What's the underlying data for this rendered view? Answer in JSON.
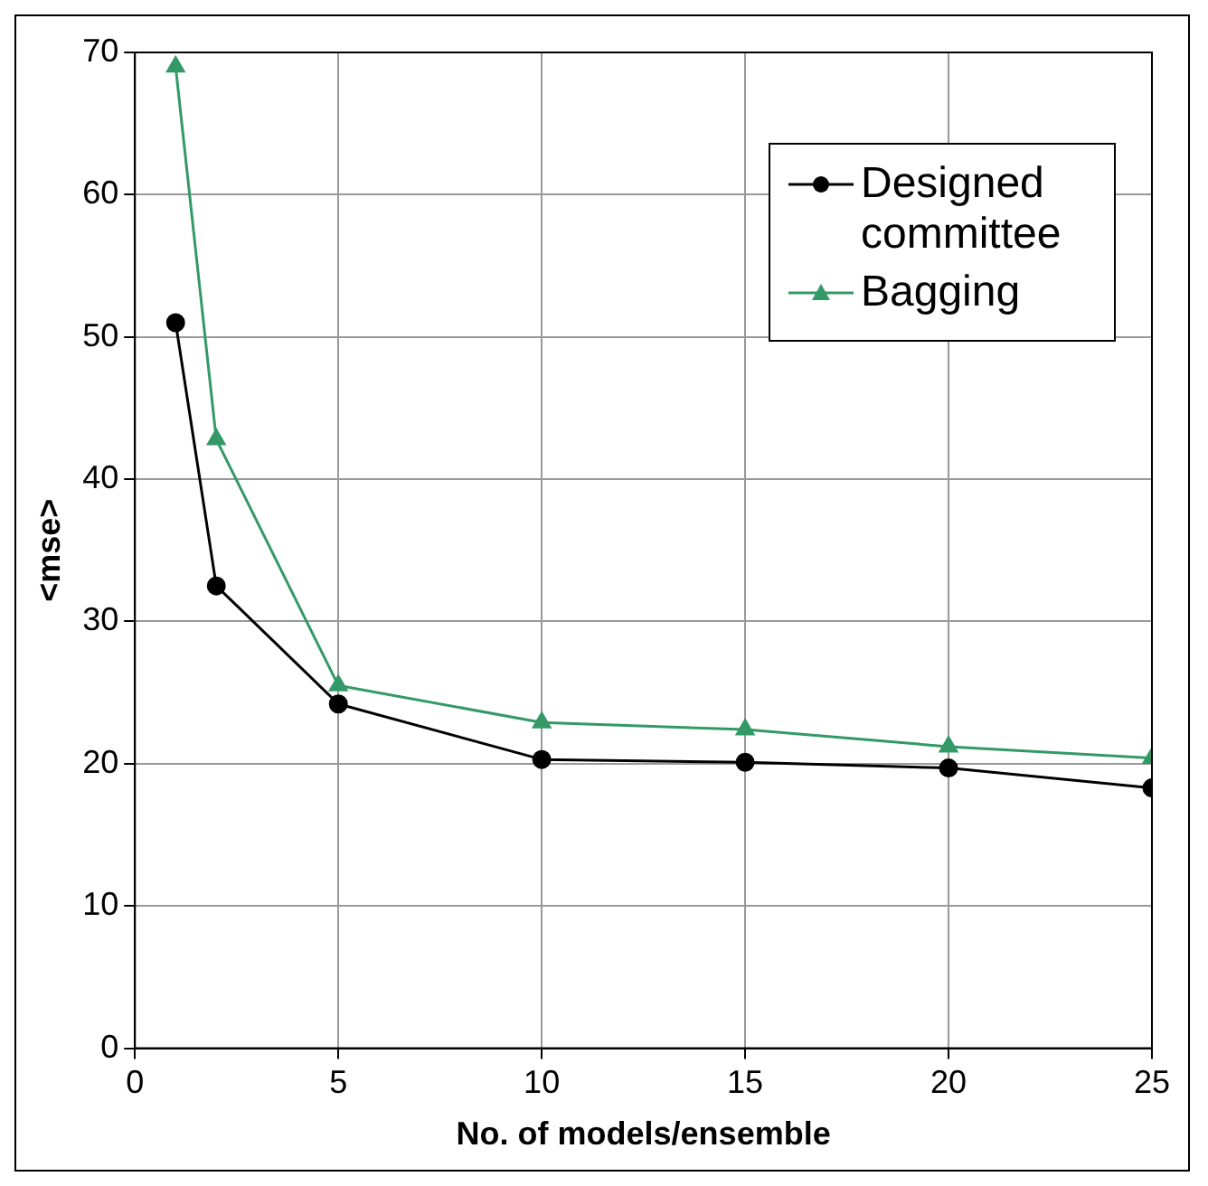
{
  "chart_data": {
    "type": "line",
    "xlabel": "No. of models/ensemble",
    "ylabel": "<mse>",
    "x": [
      1,
      2,
      5,
      10,
      15,
      20,
      25
    ],
    "series": [
      {
        "name": "Designed committee",
        "color": "#000000",
        "marker": "circle",
        "values": [
          51,
          32.5,
          24.2,
          20.3,
          20.1,
          19.7,
          18.3
        ]
      },
      {
        "name": "Bagging",
        "color": "#339966",
        "marker": "triangle",
        "values": [
          69,
          42.8,
          25.5,
          22.9,
          22.4,
          21.2,
          20.4
        ]
      }
    ],
    "xlim": [
      0,
      25
    ],
    "xticks": [
      0,
      5,
      10,
      15,
      20,
      25
    ],
    "ylim": [
      0,
      70
    ],
    "yticks": [
      0,
      10,
      20,
      30,
      40,
      50,
      60,
      70
    ],
    "grid": true,
    "legend": "top right"
  }
}
